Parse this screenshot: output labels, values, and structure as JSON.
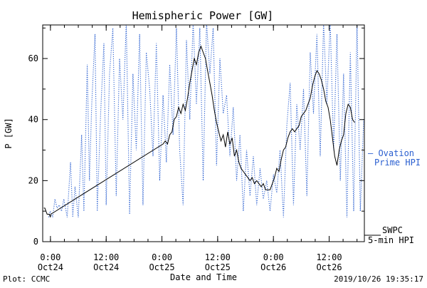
{
  "chart_data": {
    "type": "line",
    "title": "Hemispheric Power [GW]",
    "xlabel": "Date and Time",
    "ylabel": "P [GW]",
    "ylim": [
      0,
      71
    ],
    "xlim": [
      "2019-10-23 22:20",
      "2019-10-26 19:35"
    ],
    "yticks": [
      0,
      20,
      40,
      60
    ],
    "yticks_right_only": [
      10,
      30,
      50,
      70
    ],
    "xticks": [
      {
        "time": "2019-10-24 00:00",
        "line1": "0:00",
        "line2": "Oct24"
      },
      {
        "time": "2019-10-24 12:00",
        "line1": "12:00",
        "line2": "Oct24"
      },
      {
        "time": "2019-10-25 00:00",
        "line1": "0:00",
        "line2": "Oct25"
      },
      {
        "time": "2019-10-25 12:00",
        "line1": "12:00",
        "line2": "Oct25"
      },
      {
        "time": "2019-10-26 00:00",
        "line1": "0:00",
        "line2": "Oct26"
      },
      {
        "time": "2019-10-26 12:00",
        "line1": "12:00",
        "line2": "Oct26"
      }
    ],
    "grid": false,
    "legend": "right",
    "series": [
      {
        "name": "Ovation Prime HPI",
        "legend_lines": [
          "— Ovation",
          "Prime HPI"
        ],
        "color": "#2a5fd0",
        "style": "dotted",
        "points": [
          [
            "2019-10-23 23:36",
            8
          ],
          [
            "2019-10-23 23:58",
            10
          ],
          [
            "2019-10-24 00:29",
            8
          ],
          [
            "2019-10-24 00:58",
            14
          ],
          [
            "2019-10-24 01:26",
            11
          ],
          [
            "2019-10-24 01:55",
            12
          ],
          [
            "2019-10-24 02:24",
            10
          ],
          [
            "2019-10-24 02:53",
            14
          ],
          [
            "2019-10-24 03:36",
            8
          ],
          [
            "2019-10-24 04:19",
            26
          ],
          [
            "2019-10-24 04:48",
            8
          ],
          [
            "2019-10-24 05:17",
            18
          ],
          [
            "2019-10-24 06:00",
            8
          ],
          [
            "2019-10-24 06:43",
            35
          ],
          [
            "2019-10-24 07:12",
            10
          ],
          [
            "2019-10-24 07:55",
            58
          ],
          [
            "2019-10-24 08:24",
            20
          ],
          [
            "2019-10-24 08:53",
            45
          ],
          [
            "2019-10-24 09:36",
            68
          ],
          [
            "2019-10-24 10:05",
            10
          ],
          [
            "2019-10-24 10:48",
            42
          ],
          [
            "2019-10-24 11:31",
            65
          ],
          [
            "2019-10-24 12:00",
            12
          ],
          [
            "2019-10-24 12:43",
            55
          ],
          [
            "2019-10-24 13:26",
            70
          ],
          [
            "2019-10-24 14:10",
            15
          ],
          [
            "2019-10-24 14:53",
            60
          ],
          [
            "2019-10-24 15:36",
            40
          ],
          [
            "2019-10-24 16:19",
            72
          ],
          [
            "2019-10-24 17:02",
            9
          ],
          [
            "2019-10-24 17:46",
            55
          ],
          [
            "2019-10-24 18:29",
            30
          ],
          [
            "2019-10-24 19:12",
            68
          ],
          [
            "2019-10-24 19:55",
            12
          ],
          [
            "2019-10-24 20:38",
            62
          ],
          [
            "2019-10-24 21:22",
            50
          ],
          [
            "2019-10-24 22:05",
            28
          ],
          [
            "2019-10-24 22:48",
            65
          ],
          [
            "2019-10-24 23:31",
            20
          ],
          [
            "2019-10-25 00:14",
            48
          ],
          [
            "2019-10-25 00:58",
            26
          ],
          [
            "2019-10-25 01:41",
            58
          ],
          [
            "2019-10-25 02:24",
            35
          ],
          [
            "2019-10-25 03:07",
            70
          ],
          [
            "2019-10-25 03:50",
            30
          ],
          [
            "2019-10-25 04:34",
            12
          ],
          [
            "2019-10-25 05:17",
            66
          ],
          [
            "2019-10-25 06:00",
            40
          ],
          [
            "2019-10-25 06:43",
            72
          ],
          [
            "2019-10-25 07:26",
            45
          ],
          [
            "2019-10-25 08:10",
            70
          ],
          [
            "2019-10-25 08:53",
            20
          ],
          [
            "2019-10-25 09:36",
            72
          ],
          [
            "2019-10-25 10:19",
            55
          ],
          [
            "2019-10-25 11:02",
            70
          ],
          [
            "2019-10-25 11:46",
            25
          ],
          [
            "2019-10-25 12:29",
            60
          ],
          [
            "2019-10-25 13:12",
            42
          ],
          [
            "2019-10-25 13:55",
            48
          ],
          [
            "2019-10-25 14:38",
            28
          ],
          [
            "2019-10-25 15:22",
            44
          ],
          [
            "2019-10-25 16:05",
            20
          ],
          [
            "2019-10-25 16:48",
            35
          ],
          [
            "2019-10-25 17:31",
            10
          ],
          [
            "2019-10-25 18:14",
            30
          ],
          [
            "2019-10-25 18:58",
            15
          ],
          [
            "2019-10-25 19:41",
            28
          ],
          [
            "2019-10-25 20:24",
            12
          ],
          [
            "2019-10-25 21:07",
            24
          ],
          [
            "2019-10-25 21:50",
            14
          ],
          [
            "2019-10-25 22:34",
            20
          ],
          [
            "2019-10-25 23:17",
            10
          ],
          [
            "2019-10-26 00:00",
            22
          ],
          [
            "2019-10-26 00:43",
            16
          ],
          [
            "2019-10-26 01:26",
            30
          ],
          [
            "2019-10-26 02:10",
            8
          ],
          [
            "2019-10-26 02:53",
            38
          ],
          [
            "2019-10-26 03:36",
            52
          ],
          [
            "2019-10-26 04:19",
            12
          ],
          [
            "2019-10-26 05:02",
            45
          ],
          [
            "2019-10-26 05:46",
            30
          ],
          [
            "2019-10-26 06:29",
            50
          ],
          [
            "2019-10-26 07:12",
            15
          ],
          [
            "2019-10-26 07:55",
            62
          ],
          [
            "2019-10-26 08:38",
            42
          ],
          [
            "2019-10-26 09:22",
            68
          ],
          [
            "2019-10-26 10:05",
            28
          ],
          [
            "2019-10-26 10:48",
            72
          ],
          [
            "2019-10-26 11:31",
            45
          ],
          [
            "2019-10-26 12:14",
            72
          ],
          [
            "2019-10-26 12:58",
            30
          ],
          [
            "2019-10-26 13:41",
            68
          ],
          [
            "2019-10-26 14:24",
            20
          ],
          [
            "2019-10-26 15:07",
            55
          ],
          [
            "2019-10-26 15:50",
            8
          ],
          [
            "2019-10-26 16:34",
            62
          ],
          [
            "2019-10-26 17:17",
            10
          ],
          [
            "2019-10-26 18:00",
            72
          ],
          [
            "2019-10-26 18:43",
            10
          ],
          [
            "2019-10-26 19:26",
            40
          ]
        ]
      },
      {
        "name": "SWPC 5-min HPI",
        "legend_lines": [
          "SWPC",
          "5-min HPI"
        ],
        "color": "#000000",
        "style": "solid",
        "points": [
          [
            "2019-10-23 22:34",
            11
          ],
          [
            "2019-10-23 22:48",
            11
          ],
          [
            "2019-10-23 23:02",
            10
          ],
          [
            "2019-10-23 23:17",
            9
          ],
          [
            "2019-10-23 23:46",
            9
          ],
          [
            "2019-10-23 23:58",
            8
          ],
          [
            "2019-10-24 00:05",
            9
          ],
          [
            "2019-10-25 00:14",
            32
          ],
          [
            "2019-10-25 00:43",
            33
          ],
          [
            "2019-10-25 01:12",
            32
          ],
          [
            "2019-10-25 01:41",
            35
          ],
          [
            "2019-10-25 02:10",
            36
          ],
          [
            "2019-10-25 02:38",
            40
          ],
          [
            "2019-10-25 03:07",
            41
          ],
          [
            "2019-10-25 03:36",
            44
          ],
          [
            "2019-10-25 04:05",
            42
          ],
          [
            "2019-10-25 04:34",
            45
          ],
          [
            "2019-10-25 05:02",
            43
          ],
          [
            "2019-10-25 05:31",
            47
          ],
          [
            "2019-10-25 06:00",
            52
          ],
          [
            "2019-10-25 06:29",
            56
          ],
          [
            "2019-10-25 06:58",
            60
          ],
          [
            "2019-10-25 07:26",
            58
          ],
          [
            "2019-10-25 07:55",
            62
          ],
          [
            "2019-10-25 08:24",
            64
          ],
          [
            "2019-10-25 08:53",
            62
          ],
          [
            "2019-10-25 09:22",
            60
          ],
          [
            "2019-10-25 09:50",
            56
          ],
          [
            "2019-10-25 10:19",
            52
          ],
          [
            "2019-10-25 10:48",
            48
          ],
          [
            "2019-10-25 11:17",
            43
          ],
          [
            "2019-10-25 11:46",
            39
          ],
          [
            "2019-10-25 12:14",
            36
          ],
          [
            "2019-10-25 12:43",
            33
          ],
          [
            "2019-10-25 13:12",
            35
          ],
          [
            "2019-10-25 13:41",
            31
          ],
          [
            "2019-10-25 14:10",
            36
          ],
          [
            "2019-10-25 14:38",
            32
          ],
          [
            "2019-10-25 15:07",
            34
          ],
          [
            "2019-10-25 15:36",
            28
          ],
          [
            "2019-10-25 16:05",
            30
          ],
          [
            "2019-10-25 16:34",
            26
          ],
          [
            "2019-10-25 17:02",
            24
          ],
          [
            "2019-10-25 17:31",
            23
          ],
          [
            "2019-10-25 18:00",
            22
          ],
          [
            "2019-10-25 18:29",
            21
          ],
          [
            "2019-10-25 18:58",
            20
          ],
          [
            "2019-10-25 19:26",
            21
          ],
          [
            "2019-10-25 19:55",
            19
          ],
          [
            "2019-10-25 20:24",
            20
          ],
          [
            "2019-10-25 20:53",
            19
          ],
          [
            "2019-10-25 21:22",
            18
          ],
          [
            "2019-10-25 21:50",
            19
          ],
          [
            "2019-10-25 22:19",
            17
          ],
          [
            "2019-10-25 22:48",
            17
          ],
          [
            "2019-10-25 23:17",
            17
          ],
          [
            "2019-10-25 23:46",
            19
          ],
          [
            "2019-10-26 00:14",
            21
          ],
          [
            "2019-10-26 00:43",
            24
          ],
          [
            "2019-10-26 01:12",
            23
          ],
          [
            "2019-10-26 01:41",
            27
          ],
          [
            "2019-10-26 02:10",
            30
          ],
          [
            "2019-10-26 02:38",
            31
          ],
          [
            "2019-10-26 03:07",
            34
          ],
          [
            "2019-10-26 03:36",
            36
          ],
          [
            "2019-10-26 04:05",
            37
          ],
          [
            "2019-10-26 04:34",
            36
          ],
          [
            "2019-10-26 05:02",
            37
          ],
          [
            "2019-10-26 05:31",
            38
          ],
          [
            "2019-10-26 06:00",
            41
          ],
          [
            "2019-10-26 06:29",
            42
          ],
          [
            "2019-10-26 06:58",
            43
          ],
          [
            "2019-10-26 07:26",
            45
          ],
          [
            "2019-10-26 07:55",
            47
          ],
          [
            "2019-10-26 08:24",
            51
          ],
          [
            "2019-10-26 08:53",
            54
          ],
          [
            "2019-10-26 09:22",
            56
          ],
          [
            "2019-10-26 09:50",
            55
          ],
          [
            "2019-10-26 10:19",
            53
          ],
          [
            "2019-10-26 10:48",
            50
          ],
          [
            "2019-10-26 11:17",
            46
          ],
          [
            "2019-10-26 11:46",
            44
          ],
          [
            "2019-10-26 12:14",
            40
          ],
          [
            "2019-10-26 12:43",
            34
          ],
          [
            "2019-10-26 13:12",
            28
          ],
          [
            "2019-10-26 13:41",
            25
          ],
          [
            "2019-10-26 14:10",
            30
          ],
          [
            "2019-10-26 14:38",
            33
          ],
          [
            "2019-10-26 15:07",
            35
          ],
          [
            "2019-10-26 15:36",
            42
          ],
          [
            "2019-10-26 16:05",
            45
          ],
          [
            "2019-10-26 16:34",
            44
          ],
          [
            "2019-10-26 17:02",
            40
          ],
          [
            "2019-10-26 17:31",
            39
          ]
        ]
      }
    ]
  },
  "footer": {
    "plot_credit": "Plot: CCMC",
    "timestamp": "2019/10/26 19:35:17"
  }
}
